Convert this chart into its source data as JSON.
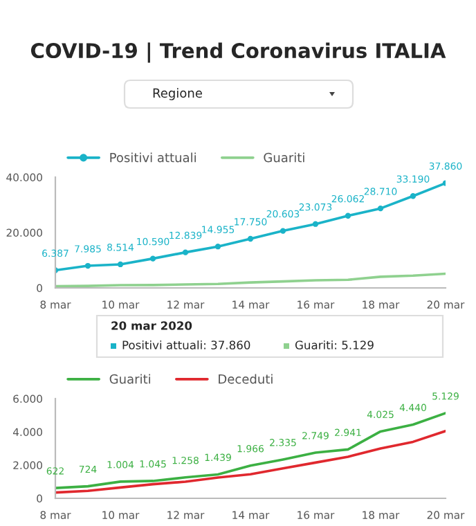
{
  "chart_data": [
    {
      "type": "line",
      "title": "COVID-19 | Trend Coronavirus ITALIA",
      "x": [
        "2020-03-08",
        "2020-03-09",
        "2020-03-10",
        "2020-03-11",
        "2020-03-12",
        "2020-03-13",
        "2020-03-14",
        "2020-03-15",
        "2020-03-16",
        "2020-03-17",
        "2020-03-18",
        "2020-03-19",
        "2020-03-20"
      ],
      "series": [
        {
          "name": "Positivi attuali",
          "color": "#1ab3c8",
          "marker": "circle",
          "values": [
            6387,
            7985,
            8514,
            10590,
            12839,
            14955,
            17750,
            20603,
            23073,
            26062,
            28710,
            33190,
            37860
          ],
          "value_labels": [
            "6.387",
            "7.985",
            "8.514",
            "10.590",
            "12.839",
            "14.955",
            "17.750",
            "20.603",
            "23.073",
            "26.062",
            "28.710",
            "33.190",
            "37.860"
          ]
        },
        {
          "name": "Guariti",
          "color": "#8fd18f",
          "marker": "none",
          "values": [
            622,
            724,
            1004,
            1045,
            1258,
            1439,
            1966,
            2335,
            2749,
            2941,
            4025,
            4440,
            5129
          ]
        }
      ],
      "xlim": [
        "2020-03-08",
        "2020-03-20"
      ],
      "xticks": [
        {
          "value": "2020-03-08",
          "label": "8 mar"
        },
        {
          "value": "2020-03-10",
          "label": "10 mar"
        },
        {
          "value": "2020-03-12",
          "label": "12 mar"
        },
        {
          "value": "2020-03-14",
          "label": "14 mar"
        },
        {
          "value": "2020-03-16",
          "label": "16 mar"
        },
        {
          "value": "2020-03-18",
          "label": "18 mar"
        },
        {
          "value": "2020-03-20",
          "label": "20 mar"
        }
      ],
      "ylim": [
        0,
        40000
      ],
      "yticks": [
        {
          "value": 0,
          "label": "0"
        },
        {
          "value": 20000,
          "label": "20.000"
        },
        {
          "value": 40000,
          "label": "40.000"
        }
      ],
      "grid": false,
      "legend": "top left",
      "line_style": "solid",
      "annotations": [
        "Regione",
        "20 mar 2020",
        "Positivi attuali: 37.860",
        "Guariti: 5.129"
      ]
    },
    {
      "type": "line",
      "x": [
        "2020-03-08",
        "2020-03-09",
        "2020-03-10",
        "2020-03-11",
        "2020-03-12",
        "2020-03-13",
        "2020-03-14",
        "2020-03-15",
        "2020-03-16",
        "2020-03-17",
        "2020-03-18",
        "2020-03-19",
        "2020-03-20"
      ],
      "series": [
        {
          "name": "Guariti",
          "color": "#3cb043",
          "values": [
            622,
            724,
            1004,
            1045,
            1258,
            1439,
            1966,
            2335,
            2749,
            2941,
            4025,
            4440,
            5129
          ],
          "value_labels": [
            "622",
            "724",
            "1.004",
            "1.045",
            "1.258",
            "1.439",
            "1.966",
            "2.335",
            "2.749",
            "2.941",
            "4.025",
            "4.440",
            "5.129"
          ]
        },
        {
          "name": "Deceduti",
          "color": "#e0282e",
          "values": [
            350,
            450,
            650,
            850,
            1000,
            1250,
            1450,
            1800,
            2150,
            2500,
            3000,
            3400,
            4050
          ]
        }
      ],
      "xlim": [
        "2020-03-08",
        "2020-03-20"
      ],
      "xticks": [
        {
          "value": "2020-03-08",
          "label": "8 mar"
        },
        {
          "value": "2020-03-10",
          "label": "10 mar"
        },
        {
          "value": "2020-03-12",
          "label": "12 mar"
        },
        {
          "value": "2020-03-14",
          "label": "14 mar"
        },
        {
          "value": "2020-03-16",
          "label": "16 mar"
        },
        {
          "value": "2020-03-18",
          "label": "18 mar"
        },
        {
          "value": "2020-03-20",
          "label": "20 mar"
        }
      ],
      "ylim": [
        0,
        6000
      ],
      "yticks": [
        {
          "value": 0,
          "label": "0"
        },
        {
          "value": 2000,
          "label": "2.000"
        },
        {
          "value": 4000,
          "label": "4.000"
        },
        {
          "value": 6000,
          "label": "6.000"
        }
      ],
      "grid": false,
      "legend": "top left",
      "marker": "none",
      "line_style": "solid"
    }
  ]
}
